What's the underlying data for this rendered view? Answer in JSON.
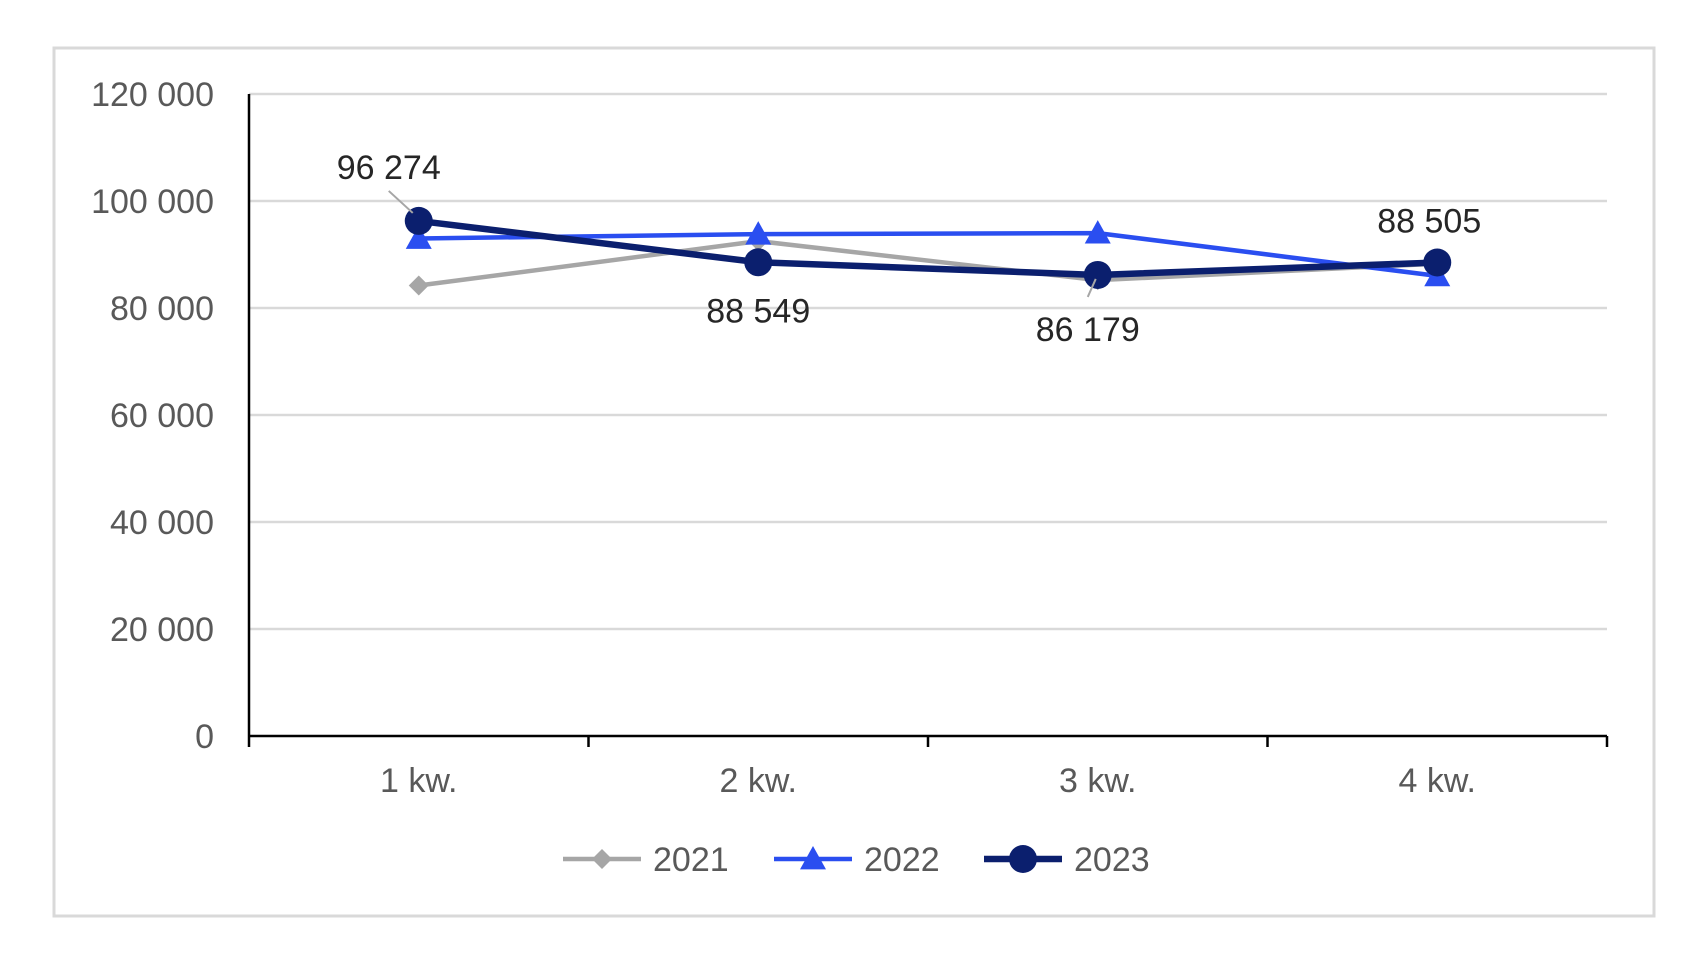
{
  "chart_data": {
    "type": "line",
    "title": "",
    "xlabel": "",
    "ylabel": "",
    "categories": [
      "1 kw.",
      "2 kw.",
      "3 kw.",
      "4 kw."
    ],
    "ylim": [
      0,
      120000
    ],
    "yticks": [
      0,
      20000,
      40000,
      60000,
      80000,
      100000,
      120000
    ],
    "ytick_labels": [
      "0",
      "20 000",
      "40 000",
      "60 000",
      "80 000",
      "100 000",
      "120 000"
    ],
    "grid": true,
    "legend_position": "bottom",
    "series": [
      {
        "name": "2021",
        "values": [
          84200,
          92500,
          85200,
          88300
        ],
        "color": "#a6a6a6",
        "marker": "diamond"
      },
      {
        "name": "2022",
        "values": [
          93000,
          93800,
          94000,
          86000
        ],
        "color": "#2a4ef0",
        "marker": "triangle"
      },
      {
        "name": "2023",
        "values": [
          96274,
          88549,
          86179,
          88505
        ],
        "color": "#0b1f6e",
        "marker": "circle"
      }
    ],
    "data_labels": [
      {
        "series": "2023",
        "index": 0,
        "text": "96 274"
      },
      {
        "series": "2023",
        "index": 1,
        "text": "88 549"
      },
      {
        "series": "2023",
        "index": 2,
        "text": "86 179"
      },
      {
        "series": "2023",
        "index": 3,
        "text": "88 505"
      }
    ]
  }
}
